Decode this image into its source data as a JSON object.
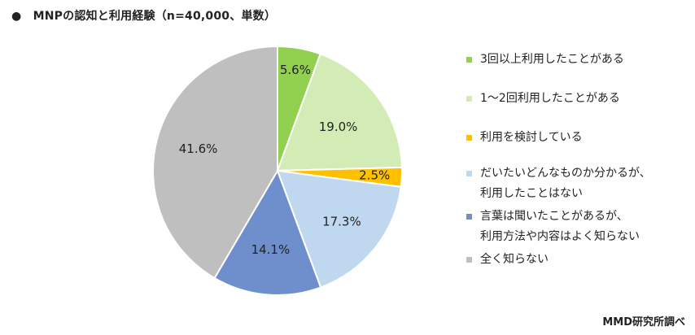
{
  "title": "●　MNPの認知と利用経験（n=40,000、単数）",
  "source": "MMD研究所調べ",
  "chart_data": {
    "type": "pie",
    "title": "MNPの認知と利用経験（n=40,000、単数）",
    "unit": "%",
    "start_angle_deg": 0,
    "direction": "clockwise",
    "legend_position": "right",
    "slices": [
      {
        "label": "3回以上利用したことがある",
        "value": 5.6,
        "value_label": "5.6%",
        "color": "#92d050"
      },
      {
        "label": "1～2回利用したことがある",
        "value": 19.0,
        "value_label": "19.0%",
        "color": "#d3ecb5"
      },
      {
        "label": "利用を検討している",
        "value": 2.5,
        "value_label": "2.5%",
        "color": "#ffc000"
      },
      {
        "label": "だいたいどんなものか分かるが、\n利用したことはない",
        "value": 17.3,
        "value_label": "17.3%",
        "color": "#c0d8ef"
      },
      {
        "label": "言葉は聞いたことがあるが、\n利用方法や内容はよく知らない",
        "value": 14.1,
        "value_label": "14.1%",
        "color": "#6f8fcc"
      },
      {
        "label": "全く知らない",
        "value": 41.6,
        "value_label": "41.6%",
        "color": "#bfbfbf"
      }
    ]
  }
}
